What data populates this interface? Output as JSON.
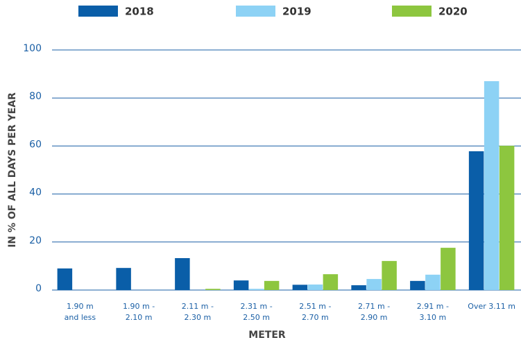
{
  "chart_data": {
    "type": "bar",
    "y_label": "IN % OF ALL DAYS PER YEAR",
    "x_label": "METER",
    "categories": [
      [
        "1.90 m",
        "and less"
      ],
      [
        "1.90 m -",
        "2.10 m"
      ],
      [
        "2.11 m -",
        "2.30 m"
      ],
      [
        "2.31 m -",
        "2.50 m"
      ],
      [
        "2.51 m -",
        "2.70 m"
      ],
      [
        "2.71 m -",
        "2.90 m"
      ],
      [
        "2.91 m -",
        "3.10 m"
      ],
      [
        "Over 3.11 m"
      ]
    ],
    "series": [
      {
        "name": "2018",
        "color": "#0a5ea8",
        "values": [
          9.0,
          9.2,
          13.3,
          4.0,
          2.2,
          2.0,
          3.8,
          57.8
        ]
      },
      {
        "name": "2019",
        "color": "#8dd2f5",
        "values": [
          0,
          0,
          0,
          0.5,
          2.3,
          4.6,
          6.4,
          87.0
        ]
      },
      {
        "name": "2020",
        "color": "#8dc63f",
        "values": [
          0,
          0,
          0.5,
          3.8,
          6.6,
          12.1,
          17.6,
          60.1
        ]
      }
    ],
    "ylim": [
      0,
      100
    ],
    "yticks": [
      0,
      20,
      40,
      60,
      80,
      100
    ],
    "grid": true,
    "legend": "top"
  }
}
